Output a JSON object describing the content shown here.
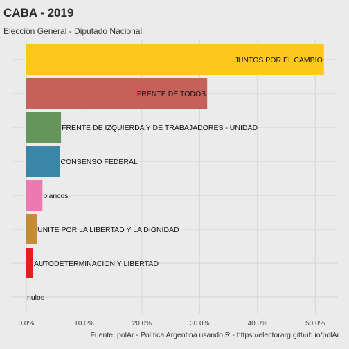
{
  "chart_data": {
    "type": "bar",
    "orientation": "horizontal",
    "title": "CABA - 2019",
    "subtitle": "Elección General - Diputado Nacional",
    "caption": "Fuente: polAr - Política Argentina usando R - https://electorarg.github.io/polAr",
    "xlabel": "",
    "ylabel": "",
    "xlim": [
      0,
      52.5
    ],
    "x_ticks": [
      0,
      10,
      20,
      30,
      40,
      50
    ],
    "x_tick_labels": [
      "0.0%",
      "10.0%",
      "20.0%",
      "30.0%",
      "40.0%",
      "50.0%"
    ],
    "grid": true,
    "legend": "none",
    "categories": [
      "JUNTOS POR EL CAMBIO",
      "FRENTE DE TODOS",
      "FRENTE DE IZQUIERDA Y DE TRABAJADORES - UNIDAD",
      "CONSENSO FEDERAL",
      "blancos",
      "UNITE POR LA LIBERTAD Y LA DIGNIDAD",
      "AUTODETERMINACION Y LIBERTAD",
      "nulos"
    ],
    "values": [
      51.5,
      31.3,
      6.0,
      5.8,
      2.8,
      1.8,
      1.2,
      0.0
    ],
    "colors": [
      "#ffc61e",
      "#c4615b",
      "#66955c",
      "#3a86a8",
      "#ec7aae",
      "#c68b36",
      "#e1211d",
      "#8a8a8a"
    ],
    "label_position": [
      "inside-end",
      "inside-end",
      "outside",
      "outside",
      "outside",
      "outside",
      "outside",
      "outside"
    ]
  }
}
